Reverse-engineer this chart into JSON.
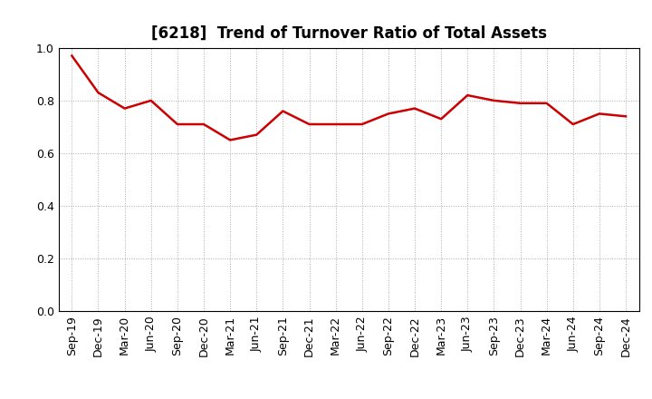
{
  "title": "[6218]  Trend of Turnover Ratio of Total Assets",
  "x_labels": [
    "Sep-19",
    "Dec-19",
    "Mar-20",
    "Jun-20",
    "Sep-20",
    "Dec-20",
    "Mar-21",
    "Jun-21",
    "Sep-21",
    "Dec-21",
    "Mar-22",
    "Jun-22",
    "Sep-22",
    "Dec-22",
    "Mar-23",
    "Jun-23",
    "Sep-23",
    "Dec-23",
    "Mar-24",
    "Jun-24",
    "Sep-24",
    "Dec-24"
  ],
  "y_values": [
    0.97,
    0.83,
    0.77,
    0.8,
    0.71,
    0.71,
    0.65,
    0.67,
    0.76,
    0.71,
    0.71,
    0.71,
    0.75,
    0.77,
    0.73,
    0.82,
    0.8,
    0.79,
    0.79,
    0.71,
    0.75,
    0.74
  ],
  "line_color": "#cc0000",
  "line_width": 1.8,
  "ylim": [
    0.0,
    1.0
  ],
  "yticks": [
    0.0,
    0.2,
    0.4,
    0.6,
    0.8,
    1.0
  ],
  "grid_color": "#aaaaaa",
  "grid_style": "dotted",
  "background_color": "#ffffff",
  "title_fontsize": 12,
  "tick_fontsize": 9
}
